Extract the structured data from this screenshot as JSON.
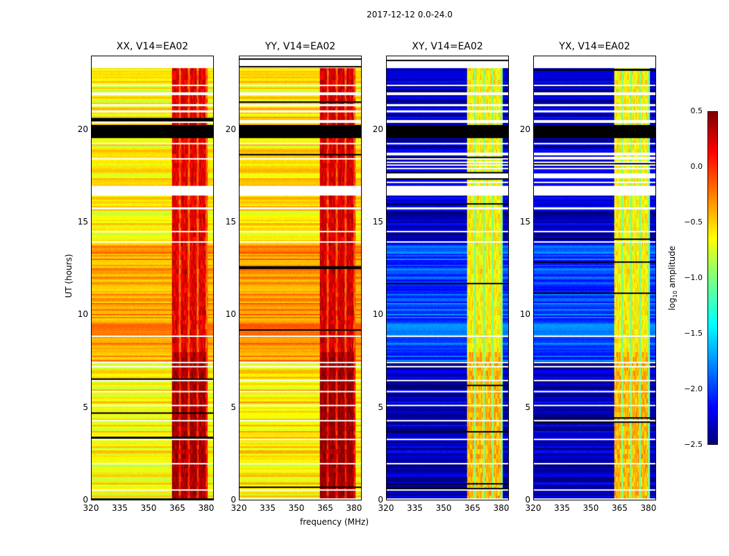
{
  "title": "2017-12-12 0.0-24.0",
  "chart_data": {
    "type": "heatmap",
    "title": "2017-12-12 0.0-24.0",
    "xlabel": "frequency (MHz)",
    "ylabel": "UT (hours)",
    "xlim": [
      320,
      384
    ],
    "ylim": [
      0,
      24
    ],
    "xticks": [
      "320",
      "335",
      "350",
      "365",
      "380"
    ],
    "yticks": [
      "0",
      "5",
      "10",
      "15",
      "20"
    ],
    "colorbar": {
      "label": "log10 amplitude",
      "label_main": "log",
      "label_sub": "10",
      "label_rest": " amplitude",
      "range": [
        -2.5,
        0.5
      ],
      "ticks": [
        "0.5",
        "0.0",
        "−0.5",
        "−1.0",
        "−1.5",
        "−2.0",
        "−2.5"
      ],
      "colormap": "jet"
    },
    "panels": [
      {
        "title": "XX, V14=EA02",
        "base_level": -0.6,
        "band_level": 0.2
      },
      {
        "title": "YY, V14=EA02",
        "base_level": -0.55,
        "band_level": 0.25
      },
      {
        "title": "XY, V14=EA02",
        "base_level": -2.3,
        "band_level": -0.6
      },
      {
        "title": "YX, V14=EA02",
        "base_level": -2.3,
        "band_level": -0.6
      }
    ],
    "rfi_band_mhz": [
      362,
      381
    ],
    "flagged_black_hours": [
      [
        19.6,
        20.3
      ]
    ],
    "flagged_white_hours": [
      [
        16.5,
        17.0
      ],
      [
        23.4,
        24.0
      ]
    ]
  }
}
